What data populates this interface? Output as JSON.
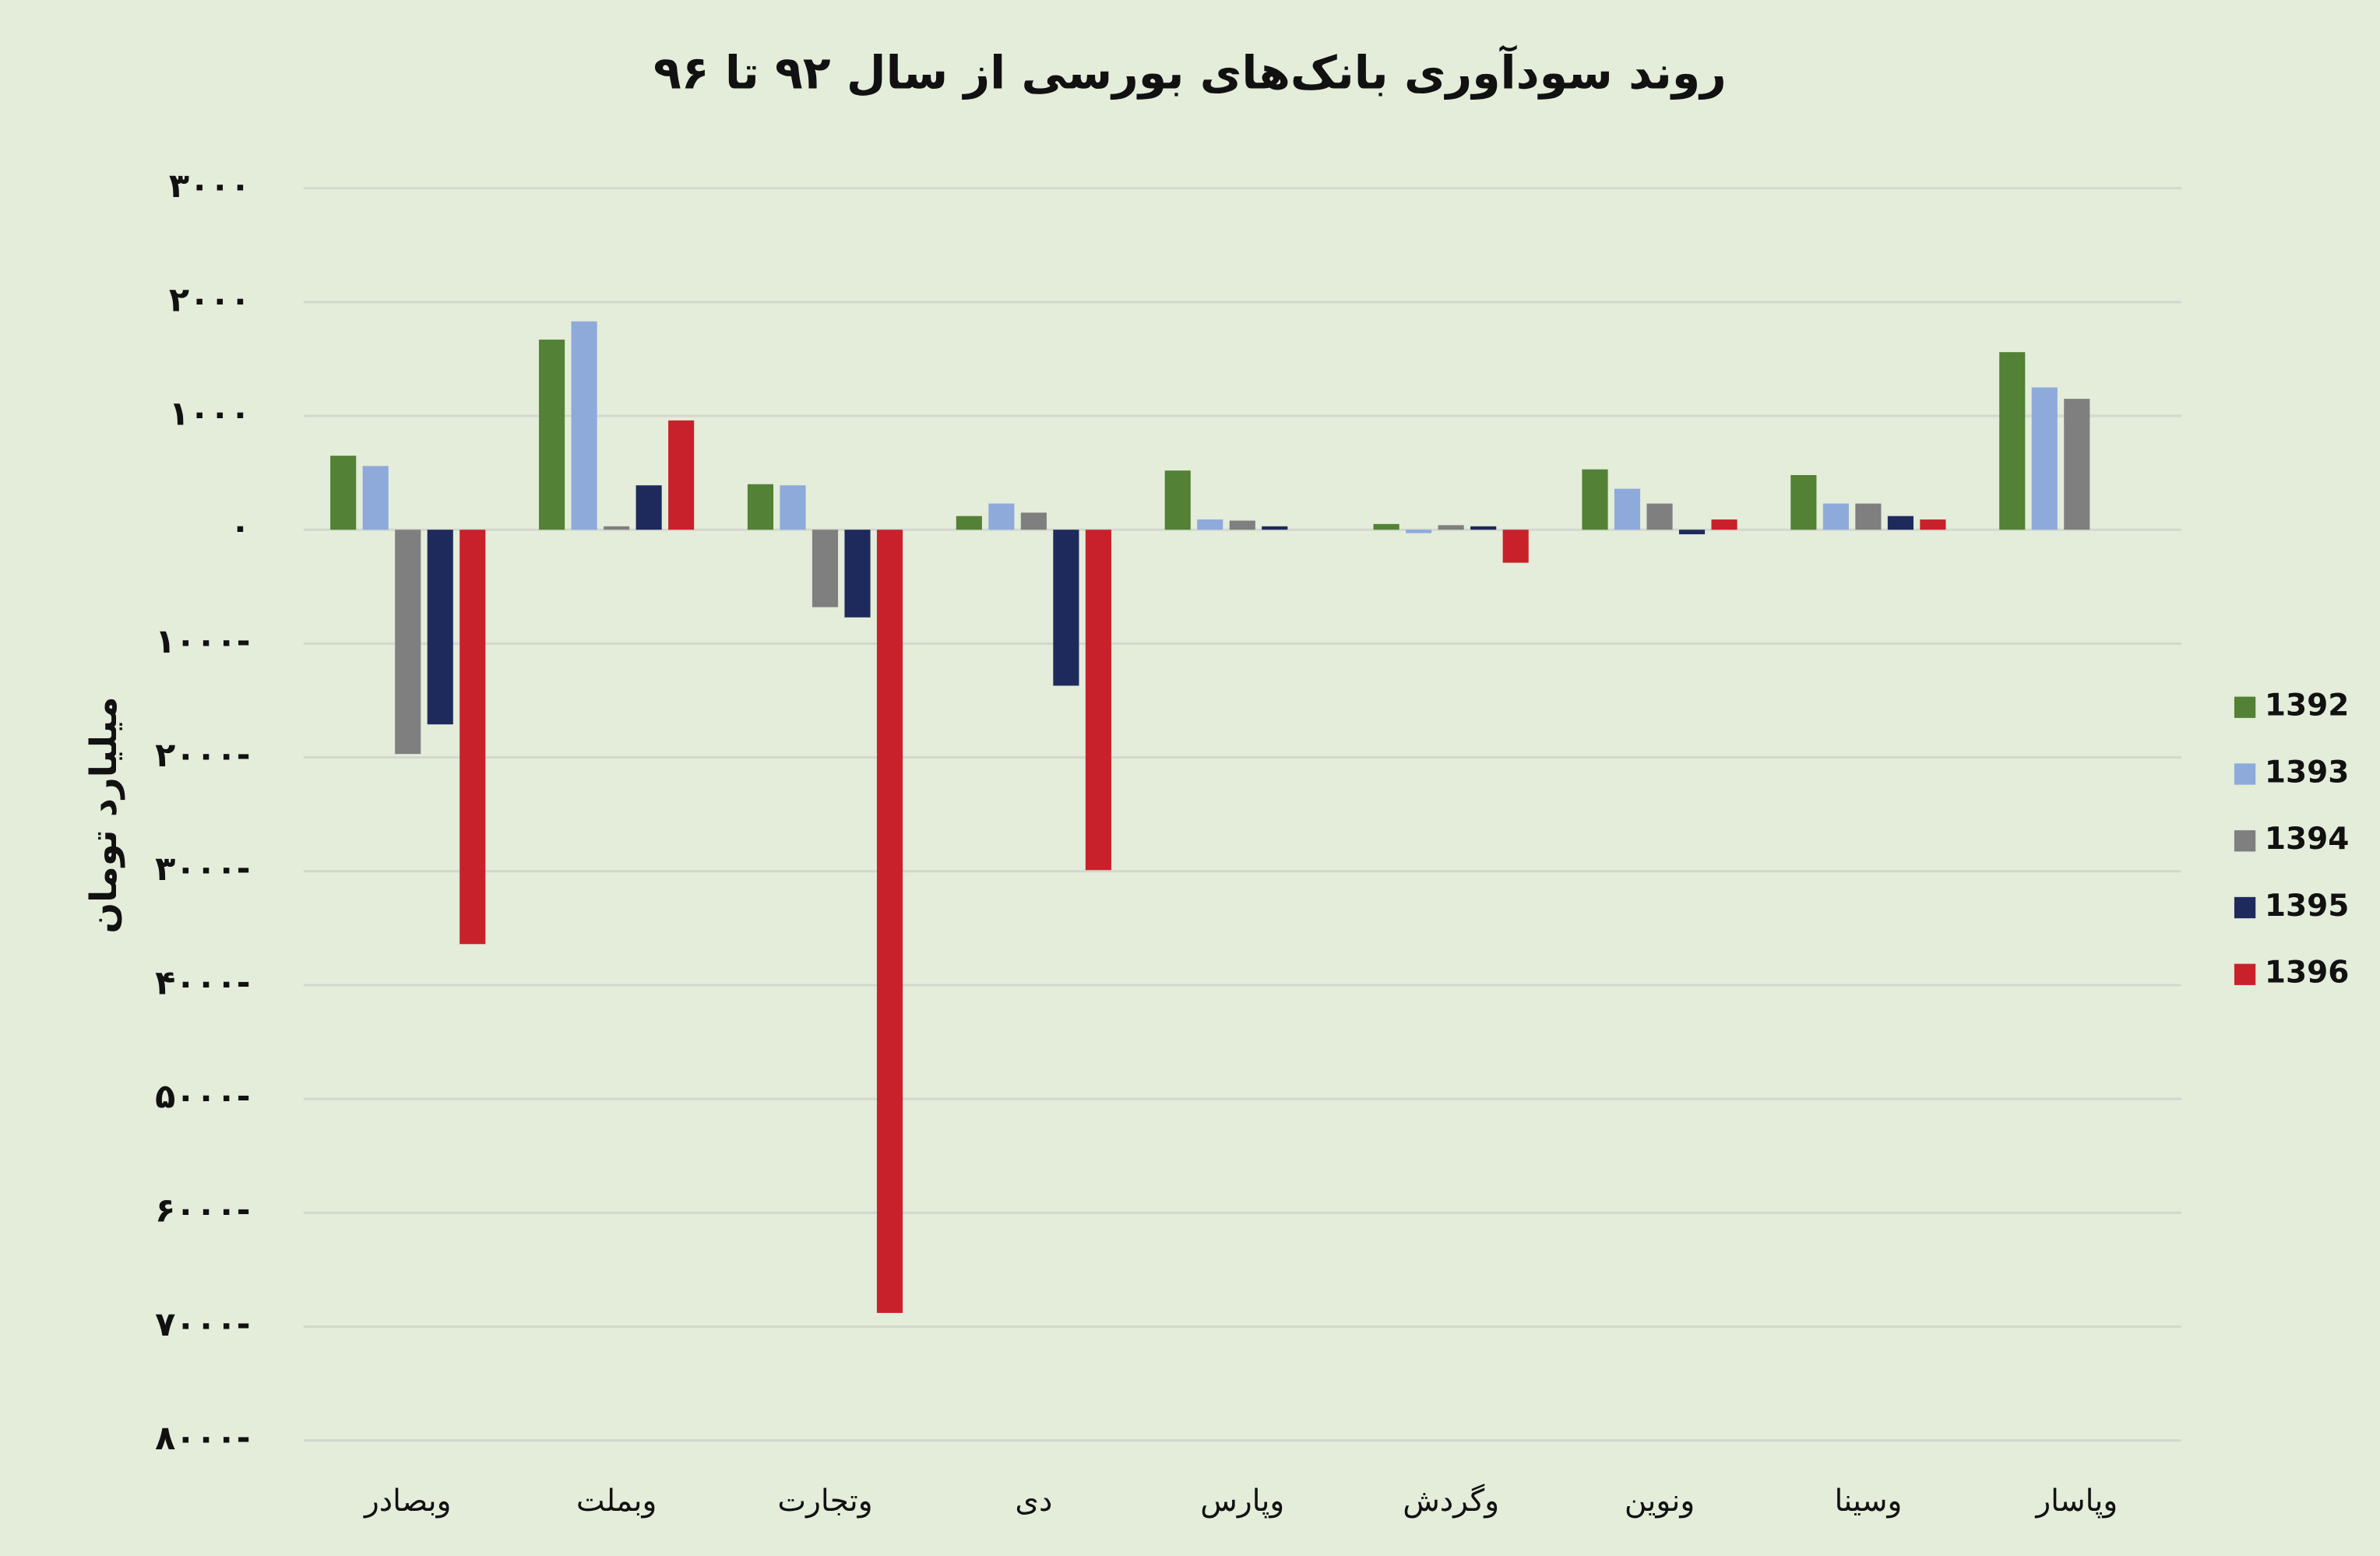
{
  "chart_data": {
    "type": "bar",
    "title": "روند سودآوری بانک‌های بورسی از سال ۹۲ تا ۹۶",
    "y_label": "میلیارد تومان",
    "categories": [
      "وبصادر",
      "وبملت",
      "وتجارت",
      "دی",
      "وپارس",
      "وگردش",
      "ونوین",
      "وسینا",
      "وپاسار"
    ],
    "series": [
      {
        "name": "1392",
        "color": "#538135",
        "values": [
          650,
          1670,
          400,
          120,
          520,
          50,
          530,
          480,
          1560
        ]
      },
      {
        "name": "1393",
        "color": "#8eaadb",
        "values": [
          560,
          1830,
          390,
          230,
          90,
          -30,
          360,
          230,
          1250
        ]
      },
      {
        "name": "1394",
        "color": "#7f7f7f",
        "values": [
          -1970,
          30,
          -680,
          150,
          80,
          40,
          230,
          230,
          1150
        ]
      },
      {
        "name": "1395",
        "color": "#1f2a5c",
        "values": [
          -1710,
          390,
          -770,
          -1370,
          30,
          30,
          -40,
          120,
          null
        ]
      },
      {
        "name": "1396",
        "color": "#c9212b",
        "values": [
          -3640,
          960,
          -6880,
          -2990,
          null,
          -290,
          90,
          90,
          null
        ]
      }
    ],
    "ylim": [
      -8000,
      3000
    ],
    "yticks": [
      {
        "value": 3000,
        "label": "۳۰۰۰"
      },
      {
        "value": 2000,
        "label": "۲۰۰۰"
      },
      {
        "value": 1000,
        "label": "۱۰۰۰"
      },
      {
        "value": 0,
        "label": "۰"
      },
      {
        "value": -1000,
        "label": "۱۰۰۰-"
      },
      {
        "value": -2000,
        "label": "۲۰۰۰-"
      },
      {
        "value": -3000,
        "label": "۳۰۰۰-"
      },
      {
        "value": -4000,
        "label": "۴۰۰۰-"
      },
      {
        "value": -5000,
        "label": "۵۰۰۰-"
      },
      {
        "value": -6000,
        "label": "۶۰۰۰-"
      },
      {
        "value": -7000,
        "label": "۷۰۰۰-"
      },
      {
        "value": -8000,
        "label": "۸۰۰۰-"
      }
    ],
    "grid": true,
    "legend": "right"
  }
}
